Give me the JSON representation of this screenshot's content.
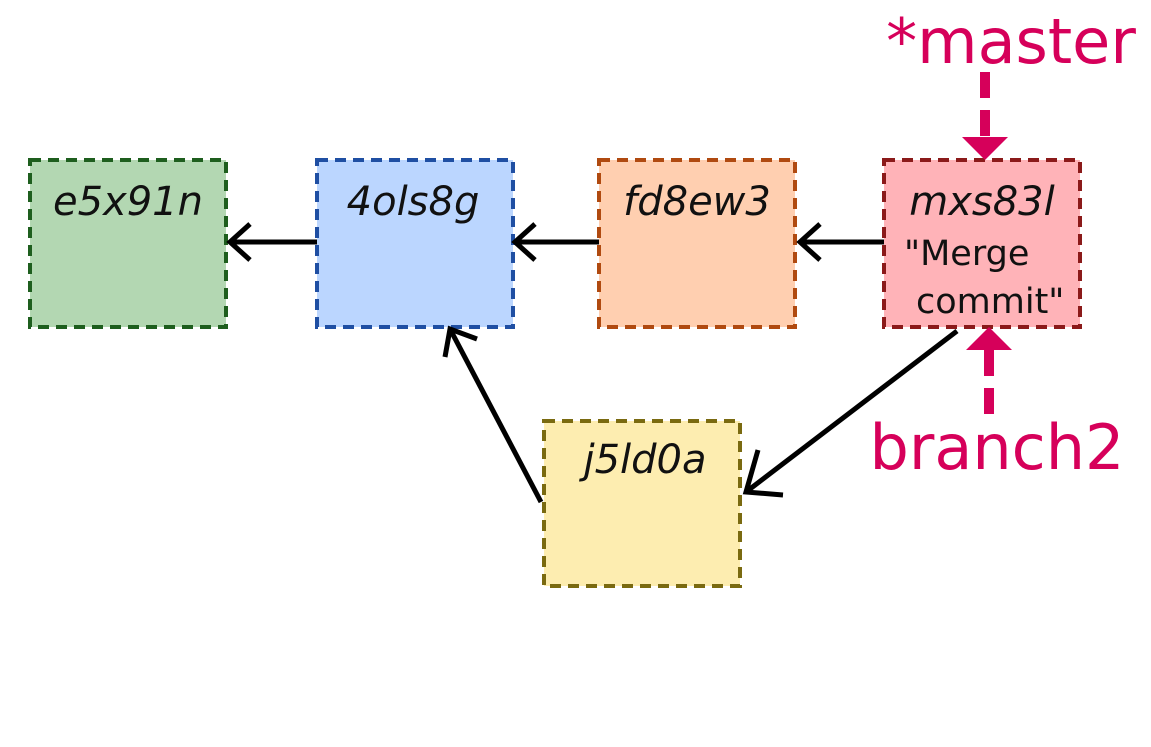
{
  "commits": [
    {
      "id": "e5x91n",
      "fill": "#b3d7b2",
      "stroke": "#1e5e1e"
    },
    {
      "id": "4ols8g",
      "fill": "#bbd6ff",
      "stroke": "#1f4fa3"
    },
    {
      "id": "fd8ew3",
      "fill": "#ffcfb0",
      "stroke": "#b04a10"
    },
    {
      "id": "mxs83l",
      "fill": "#ffb3b8",
      "stroke": "#8b1a1a",
      "message_lines": [
        "\"Merge",
        "commit\""
      ]
    },
    {
      "id": "j5ld0a",
      "fill": "#fdedb0",
      "stroke": "#7a6a10"
    }
  ],
  "refs": {
    "master": {
      "label": "*master",
      "color": "#d6005a"
    },
    "branch2": {
      "label": "branch2",
      "color": "#d6005a"
    }
  },
  "edge_color": "#000000"
}
